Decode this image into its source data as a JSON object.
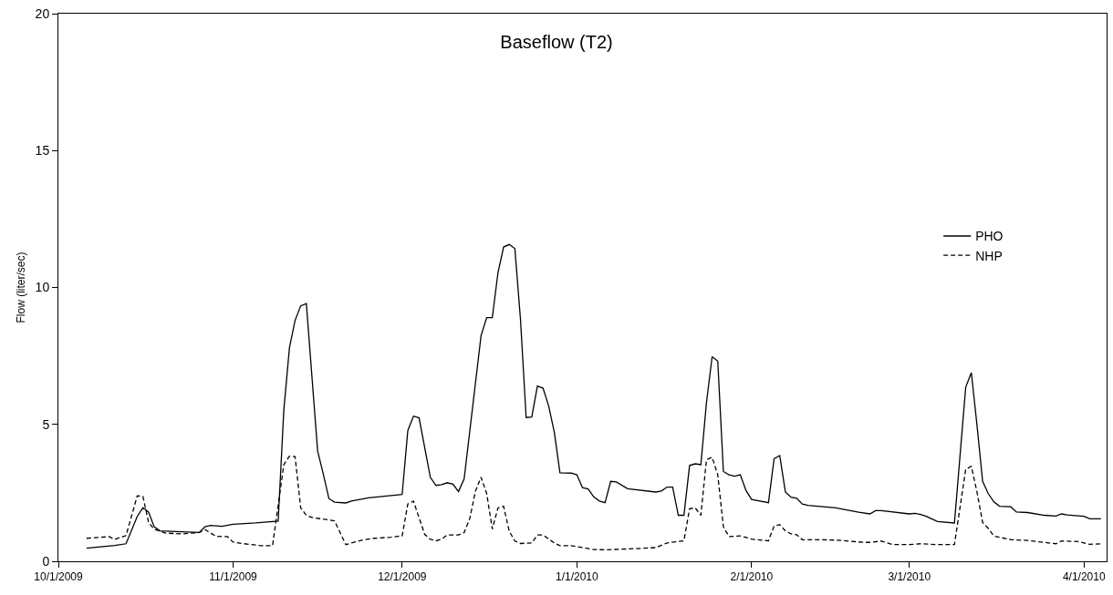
{
  "chart_data": {
    "type": "line",
    "title": "Baseflow (T2)",
    "ylabel": "Flow (liter/sec)",
    "xlim": [
      "2009-10-01",
      "2010-04-05"
    ],
    "xticks": [
      {
        "value": "2009-10-01",
        "label": "10/1/2009"
      },
      {
        "value": "2009-11-01",
        "label": "11/1/2009"
      },
      {
        "value": "2009-12-01",
        "label": "12/1/2009"
      },
      {
        "value": "2010-01-01",
        "label": "1/1/2010"
      },
      {
        "value": "2010-02-01",
        "label": "2/1/2010"
      },
      {
        "value": "2010-03-01",
        "label": "3/1/2010"
      },
      {
        "value": "2010-04-01",
        "label": "4/1/2010"
      }
    ],
    "ylim": [
      0,
      20
    ],
    "yticks": [
      0,
      5,
      10,
      15,
      20
    ],
    "grid": false,
    "legend": "right",
    "marker": "none",
    "series": [
      {
        "name": "PHO",
        "color": "#000000",
        "line_style": "solid",
        "x": [
          "2009-10-06",
          "2009-10-11",
          "2009-10-13",
          "2009-10-15",
          "2009-10-16",
          "2009-10-17",
          "2009-10-18",
          "2009-10-19",
          "2009-10-26",
          "2009-10-27",
          "2009-10-28",
          "2009-10-30",
          "2009-11-01",
          "2009-11-05",
          "2009-11-09",
          "2009-11-10",
          "2009-11-11",
          "2009-11-12",
          "2009-11-13",
          "2009-11-14",
          "2009-11-16",
          "2009-11-17",
          "2009-11-18",
          "2009-11-19",
          "2009-11-21",
          "2009-11-22",
          "2009-11-25",
          "2009-11-29",
          "2009-12-01",
          "2009-12-02",
          "2009-12-03",
          "2009-12-04",
          "2009-12-06",
          "2009-12-07",
          "2009-12-08",
          "2009-12-09",
          "2009-12-10",
          "2009-12-11",
          "2009-12-12",
          "2009-12-15",
          "2009-12-16",
          "2009-12-17",
          "2009-12-18",
          "2009-12-19",
          "2009-12-20",
          "2009-12-21",
          "2009-12-22",
          "2009-12-23",
          "2009-12-24",
          "2009-12-25",
          "2009-12-26",
          "2009-12-27",
          "2009-12-28",
          "2009-12-29",
          "2009-12-31",
          "2010-01-01",
          "2010-01-02",
          "2010-01-03",
          "2010-01-04",
          "2010-01-05",
          "2010-01-06",
          "2010-01-07",
          "2010-01-08",
          "2010-01-10",
          "2010-01-15",
          "2010-01-16",
          "2010-01-17",
          "2010-01-18",
          "2010-01-19",
          "2010-01-20",
          "2010-01-21",
          "2010-01-22",
          "2010-01-23",
          "2010-01-24",
          "2010-01-25",
          "2010-01-26",
          "2010-01-27",
          "2010-01-28",
          "2010-01-29",
          "2010-01-30",
          "2010-01-31",
          "2010-02-01",
          "2010-02-04",
          "2010-02-05",
          "2010-02-06",
          "2010-02-07",
          "2010-02-08",
          "2010-02-09",
          "2010-02-10",
          "2010-02-11",
          "2010-02-16",
          "2010-02-17",
          "2010-02-20",
          "2010-02-22",
          "2010-02-23",
          "2010-02-24",
          "2010-03-01",
          "2010-03-02",
          "2010-03-03",
          "2010-03-04",
          "2010-03-06",
          "2010-03-09",
          "2010-03-11",
          "2010-03-12",
          "2010-03-13",
          "2010-03-14",
          "2010-03-15",
          "2010-03-16",
          "2010-03-17",
          "2010-03-19",
          "2010-03-20",
          "2010-03-22",
          "2010-03-25",
          "2010-03-27",
          "2010-03-28",
          "2010-03-29",
          "2010-04-01",
          "2010-04-02",
          "2010-04-04"
        ],
        "values": [
          0.48,
          0.58,
          0.64,
          1.64,
          1.96,
          1.8,
          1.26,
          1.11,
          1.05,
          1.26,
          1.31,
          1.28,
          1.35,
          1.4,
          1.47,
          5.52,
          7.8,
          8.8,
          9.33,
          9.41,
          4.03,
          3.19,
          2.29,
          2.16,
          2.13,
          2.2,
          2.32,
          2.4,
          2.44,
          4.77,
          5.3,
          5.24,
          3.07,
          2.77,
          2.8,
          2.87,
          2.82,
          2.55,
          3.01,
          8.24,
          8.9,
          8.9,
          10.54,
          11.48,
          11.57,
          11.42,
          8.82,
          5.25,
          5.27,
          6.4,
          6.32,
          5.67,
          4.71,
          3.23,
          3.22,
          3.16,
          2.69,
          2.64,
          2.35,
          2.2,
          2.14,
          2.92,
          2.9,
          2.65,
          2.53,
          2.57,
          2.71,
          2.71,
          1.68,
          1.68,
          3.5,
          3.56,
          3.53,
          5.8,
          7.47,
          7.31,
          3.28,
          3.16,
          3.11,
          3.16,
          2.59,
          2.26,
          2.14,
          3.75,
          3.86,
          2.53,
          2.34,
          2.3,
          2.09,
          2.04,
          1.95,
          1.91,
          1.79,
          1.73,
          1.85,
          1.85,
          1.73,
          1.75,
          1.71,
          1.64,
          1.45,
          1.4,
          6.36,
          6.89,
          4.97,
          2.92,
          2.47,
          2.17,
          2.01,
          1.99,
          1.8,
          1.78,
          1.68,
          1.65,
          1.73,
          1.69,
          1.64,
          1.55,
          1.55
        ]
      },
      {
        "name": "NHP",
        "color": "#000000",
        "line_style": "dashed",
        "x": [
          "2009-10-06",
          "2009-10-10",
          "2009-10-11",
          "2009-10-13",
          "2009-10-15",
          "2009-10-16",
          "2009-10-17",
          "2009-10-18",
          "2009-10-20",
          "2009-10-23",
          "2009-10-26",
          "2009-10-27",
          "2009-10-29",
          "2009-10-31",
          "2009-11-01",
          "2009-11-03",
          "2009-11-06",
          "2009-11-08",
          "2009-11-10",
          "2009-11-11",
          "2009-11-12",
          "2009-11-13",
          "2009-11-14",
          "2009-11-15",
          "2009-11-19",
          "2009-11-21",
          "2009-11-24",
          "2009-11-26",
          "2009-11-29",
          "2009-12-01",
          "2009-12-02",
          "2009-12-03",
          "2009-12-05",
          "2009-12-06",
          "2009-12-07",
          "2009-12-08",
          "2009-12-09",
          "2009-12-11",
          "2009-12-12",
          "2009-12-13",
          "2009-12-14",
          "2009-12-15",
          "2009-12-16",
          "2009-12-17",
          "2009-12-18",
          "2009-12-19",
          "2009-12-20",
          "2009-12-21",
          "2009-12-22",
          "2009-12-24",
          "2009-12-25",
          "2009-12-26",
          "2009-12-28",
          "2009-12-29",
          "2009-12-31",
          "2010-01-02",
          "2010-01-04",
          "2010-01-06",
          "2010-01-11",
          "2010-01-15",
          "2010-01-17",
          "2010-01-20",
          "2010-01-21",
          "2010-01-22",
          "2010-01-23",
          "2010-01-24",
          "2010-01-25",
          "2010-01-26",
          "2010-01-27",
          "2010-01-28",
          "2010-01-30",
          "2010-02-01",
          "2010-02-04",
          "2010-02-05",
          "2010-02-06",
          "2010-02-07",
          "2010-02-08",
          "2010-02-09",
          "2010-02-10",
          "2010-02-15",
          "2010-02-17",
          "2010-02-21",
          "2010-02-22",
          "2010-02-24",
          "2010-02-26",
          "2010-03-01",
          "2010-03-03",
          "2010-03-06",
          "2010-03-09",
          "2010-03-11",
          "2010-03-12",
          "2010-03-13",
          "2010-03-14",
          "2010-03-15",
          "2010-03-16",
          "2010-03-19",
          "2010-03-22",
          "2010-03-27",
          "2010-03-28",
          "2010-03-31",
          "2010-04-02",
          "2010-04-04"
        ],
        "values": [
          0.84,
          0.9,
          0.8,
          0.94,
          2.39,
          2.37,
          1.42,
          1.17,
          1.03,
          1.0,
          1.05,
          1.16,
          0.91,
          0.9,
          0.7,
          0.64,
          0.57,
          0.57,
          3.53,
          3.84,
          3.82,
          1.95,
          1.68,
          1.6,
          1.48,
          0.61,
          0.78,
          0.84,
          0.88,
          0.93,
          2.09,
          2.2,
          0.98,
          0.8,
          0.75,
          0.81,
          0.96,
          0.96,
          1.05,
          1.56,
          2.56,
          3.07,
          2.47,
          1.18,
          1.95,
          2.01,
          1.1,
          0.74,
          0.65,
          0.67,
          0.96,
          0.96,
          0.67,
          0.57,
          0.57,
          0.5,
          0.43,
          0.42,
          0.46,
          0.5,
          0.67,
          0.75,
          1.92,
          1.95,
          1.68,
          3.71,
          3.8,
          3.16,
          1.26,
          0.9,
          0.93,
          0.81,
          0.75,
          1.29,
          1.34,
          1.11,
          1.0,
          0.97,
          0.79,
          0.78,
          0.76,
          0.69,
          0.69,
          0.74,
          0.61,
          0.61,
          0.64,
          0.61,
          0.61,
          3.36,
          3.47,
          2.53,
          1.42,
          1.2,
          0.92,
          0.79,
          0.76,
          0.64,
          0.74,
          0.72,
          0.62,
          0.64
        ]
      }
    ]
  }
}
